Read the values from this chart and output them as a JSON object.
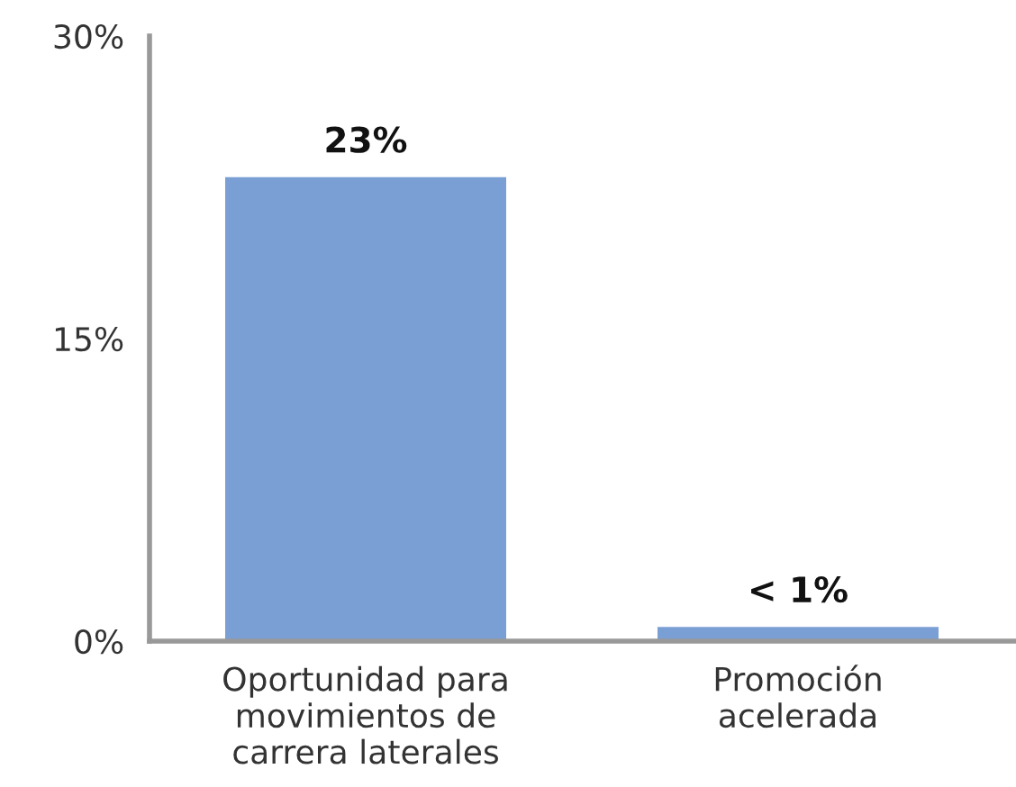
{
  "chart_data": {
    "type": "bar",
    "categories": [
      "Oportunidad para\nmovimientos de\ncarrera laterales",
      "Promoción\nacelerada"
    ],
    "values": [
      23,
      0.7
    ],
    "color": "#7a9fd4",
    "value_labels": [
      "23%",
      "< 1%"
    ],
    "ylim": [
      0,
      30
    ],
    "yticks": [
      {
        "value": 0,
        "label": "0%"
      },
      {
        "value": 15,
        "label": "15%"
      },
      {
        "value": 30,
        "label": "30%"
      }
    ],
    "grid": false,
    "legend": false
  }
}
